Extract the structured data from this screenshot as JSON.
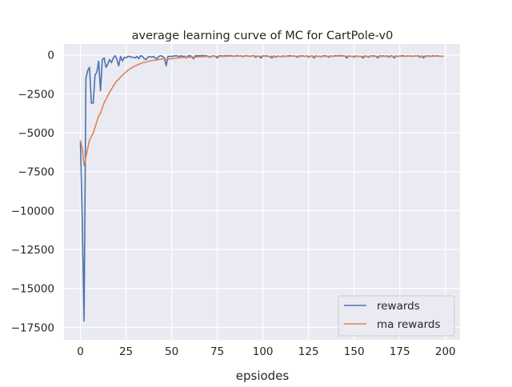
{
  "chart_data": {
    "type": "line",
    "title": "average learning curve of MC for CartPole-v0",
    "xlabel": "epsiodes",
    "ylabel": "",
    "xlim": [
      -9,
      208
    ],
    "ylim": [
      -18300,
      700
    ],
    "xticks": [
      0,
      25,
      50,
      75,
      100,
      125,
      150,
      175,
      200
    ],
    "yticks": [
      0,
      -2500,
      -5000,
      -7500,
      -10000,
      -12500,
      -15000,
      -17500
    ],
    "ytick_labels": [
      "0",
      "−2500",
      "−5000",
      "−7500",
      "−10000",
      "−12500",
      "−15000",
      "−17500"
    ],
    "grid": true,
    "legend_placement": "lower-right",
    "background": "#eaeaf2",
    "series": [
      {
        "name": "rewards",
        "color": "#4c72b0",
        "values": [
          -5500,
          -10500,
          -17100,
          -1500,
          -1000,
          -800,
          -3100,
          -3100,
          -1300,
          -1100,
          -400,
          -2300,
          -300,
          -200,
          -800,
          -600,
          -300,
          -500,
          -200,
          -50,
          -300,
          -700,
          -100,
          -400,
          -150,
          -200,
          -100,
          -100,
          -150,
          -150,
          -200,
          -100,
          -250,
          -50,
          -100,
          -250,
          -300,
          -150,
          -100,
          -150,
          -100,
          -200,
          -250,
          -100,
          -50,
          -100,
          -200,
          -700,
          -100,
          -100,
          -100,
          -80,
          -60,
          -60,
          -120,
          -50,
          -100,
          -80,
          -200,
          -60,
          -50,
          -100,
          -250,
          -60,
          -50,
          -60,
          -50,
          -50,
          -60,
          -50,
          -100,
          -150,
          -80,
          -60,
          -100,
          -200,
          -60,
          -50,
          -80,
          -60,
          -50,
          -60,
          -50,
          -50,
          -100,
          -60,
          -50,
          -80,
          -60,
          -120,
          -60,
          -50,
          -80,
          -100,
          -60,
          -50,
          -150,
          -80,
          -100,
          -200,
          -60,
          -80,
          -50,
          -100,
          -120,
          -200,
          -60,
          -150,
          -80,
          -100,
          -120,
          -60,
          -100,
          -80,
          -60,
          -50,
          -80,
          -60,
          -100,
          -150,
          -60,
          -80,
          -50,
          -100,
          -60,
          -150,
          -80,
          -60,
          -200,
          -60,
          -100,
          -80,
          -120,
          -60,
          -50,
          -80,
          -150,
          -60,
          -100,
          -60,
          -50,
          -60,
          -50,
          -50,
          -60,
          -80,
          -200,
          -60,
          -100,
          -80,
          -150,
          -60,
          -100,
          -80,
          -120,
          -200,
          -60,
          -100,
          -150,
          -60,
          -80,
          -60,
          -100,
          -200,
          -60,
          -80,
          -60,
          -100,
          -60,
          -150,
          -60,
          -80,
          -200,
          -60,
          -100,
          -80,
          -60,
          -50,
          -100,
          -60,
          -80,
          -60,
          -100,
          -60,
          -80,
          -50,
          -150,
          -60,
          -200,
          -60,
          -80,
          -60,
          -100,
          -50,
          -80,
          -60,
          -60,
          -100,
          -80,
          -100
        ]
      },
      {
        "name": "ma rewards",
        "color": "#dd8452",
        "values": [
          -5500,
          -6000,
          -7110,
          -6549,
          -5994,
          -5475,
          -5237,
          -5023,
          -4651,
          -4296,
          -3906,
          -3746,
          -3401,
          -3081,
          -2853,
          -2628,
          -2395,
          -2206,
          -2005,
          -1810,
          -1659,
          -1563,
          -1417,
          -1315,
          -1199,
          -1099,
          -999,
          -909,
          -833,
          -765,
          -709,
          -648,
          -608,
          -552,
          -507,
          -481,
          -463,
          -432,
          -399,
          -374,
          -347,
          -332,
          -324,
          -302,
          -277,
          -259,
          -253,
          -298,
          -278,
          -260,
          -244,
          -228,
          -211,
          -196,
          -188,
          -174,
          -167,
          -158,
          -162,
          -152,
          -142,
          -138,
          -149,
          -140,
          -131,
          -124,
          -117,
          -110,
          -105,
          -100,
          -100,
          -105,
          -102,
          -98,
          -98,
          -108,
          -103,
          -98,
          -96,
          -93,
          -89,
          -86,
          -82,
          -79,
          -81,
          -79,
          -76,
          -76,
          -75,
          -80,
          -78,
          -75,
          -76,
          -78,
          -76,
          -73,
          -81,
          -81,
          -83,
          -95,
          -91,
          -90,
          -86,
          -87,
          -91,
          -102,
          -98,
          -103,
          -101,
          -101,
          -103,
          -99,
          -99,
          -97,
          -93,
          -89,
          -88,
          -85,
          -87,
          -93,
          -90,
          -89,
          -85,
          -87,
          -84,
          -90,
          -89,
          -86,
          -97,
          -94,
          -94,
          -93,
          -96,
          -92,
          -88,
          -87,
          -93,
          -90,
          -91,
          -88,
          -84,
          -82,
          -79,
          -76,
          -74,
          -75,
          -87,
          -85,
          -86,
          -86,
          -92,
          -89,
          -90,
          -89,
          -92,
          -103,
          -99,
          -99,
          -104,
          -100,
          -98,
          -94,
          -95,
          -105,
          -101,
          -99,
          -95,
          -96,
          -92,
          -98,
          -94,
          -93,
          -104,
          -100,
          -100,
          -98,
          -94,
          -90,
          -91,
          -88,
          -87,
          -84,
          -86,
          -83,
          -83,
          -80,
          -87,
          -84,
          -96,
          -92,
          -91,
          -88,
          -89,
          -85,
          -85,
          -82,
          -80,
          -82,
          -82,
          -84
        ]
      }
    ]
  }
}
